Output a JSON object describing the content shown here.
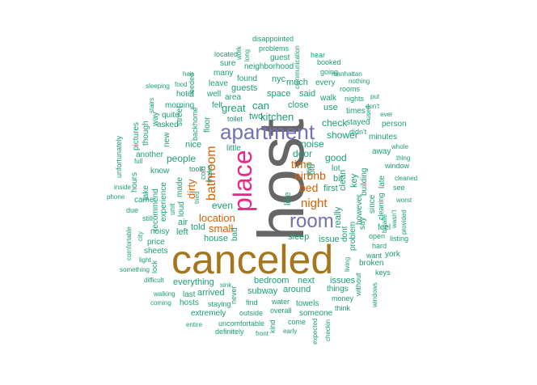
{
  "colors": {
    "teal": "#1b9e77",
    "purple": "#7570b3",
    "orange": "#d95f02",
    "pink": "#e7298a",
    "olive": "#a6761d",
    "gray": "#666666"
  },
  "words": [
    {
      "t": "host",
      "c": "gray"
    },
    {
      "t": "canceled",
      "c": "olive"
    },
    {
      "t": "apartment",
      "c": "purple"
    },
    {
      "t": "place",
      "c": "pink"
    },
    {
      "t": "room",
      "c": "purple"
    },
    {
      "t": "bathroom",
      "c": "orange"
    },
    {
      "t": "night",
      "c": "orange"
    },
    {
      "t": "airbnb",
      "c": "orange"
    },
    {
      "t": "time",
      "c": "orange"
    },
    {
      "t": "bed",
      "c": "orange"
    },
    {
      "t": "location",
      "c": "orange"
    },
    {
      "t": "small",
      "c": "orange"
    },
    {
      "t": "dirty",
      "c": "orange"
    },
    {
      "t": "kitchen",
      "c": "teal"
    },
    {
      "t": "great",
      "c": "teal"
    },
    {
      "t": "can",
      "c": "teal"
    },
    {
      "t": "two",
      "c": "teal"
    },
    {
      "t": "people",
      "c": "teal"
    },
    {
      "t": "even",
      "c": "teal"
    },
    {
      "t": "noise",
      "c": "teal"
    },
    {
      "t": "door",
      "c": "teal"
    },
    {
      "t": "shower",
      "c": "teal"
    },
    {
      "t": "good",
      "c": "teal"
    },
    {
      "t": "check",
      "c": "teal"
    },
    {
      "t": "house",
      "c": "teal"
    },
    {
      "t": "space",
      "c": "teal"
    },
    {
      "t": "much",
      "c": "teal"
    },
    {
      "t": "close",
      "c": "teal"
    },
    {
      "t": "said",
      "c": "teal"
    },
    {
      "t": "use",
      "c": "teal"
    },
    {
      "t": "guests",
      "c": "teal"
    },
    {
      "t": "nice",
      "c": "teal"
    },
    {
      "t": "area",
      "c": "teal"
    },
    {
      "t": "well",
      "c": "teal"
    },
    {
      "t": "leave",
      "c": "teal"
    },
    {
      "t": "found",
      "c": "teal"
    },
    {
      "t": "nyc",
      "c": "teal"
    },
    {
      "t": "many",
      "c": "teal"
    },
    {
      "t": "sure",
      "c": "teal"
    },
    {
      "t": "neighborhood",
      "c": "teal"
    },
    {
      "t": "guest",
      "c": "teal"
    },
    {
      "t": "located",
      "c": "teal"
    },
    {
      "t": "disappointed",
      "c": "teal"
    },
    {
      "t": "problems",
      "c": "teal"
    },
    {
      "t": "work",
      "c": "teal"
    },
    {
      "t": "long",
      "c": "teal"
    },
    {
      "t": "hear",
      "c": "teal"
    },
    {
      "t": "booked",
      "c": "teal"
    },
    {
      "t": "communication",
      "c": "teal"
    },
    {
      "t": "going",
      "c": "teal"
    },
    {
      "t": "manhattan",
      "c": "teal"
    },
    {
      "t": "nothing",
      "c": "teal"
    },
    {
      "t": "every",
      "c": "teal"
    },
    {
      "t": "rooms",
      "c": "teal"
    },
    {
      "t": "walk",
      "c": "teal"
    },
    {
      "t": "nights",
      "c": "teal"
    },
    {
      "t": "put",
      "c": "teal"
    },
    {
      "t": "don't",
      "c": "teal"
    },
    {
      "t": "ever",
      "c": "teal"
    },
    {
      "t": "times",
      "c": "teal"
    },
    {
      "t": "used",
      "c": "teal"
    },
    {
      "t": "person",
      "c": "teal"
    },
    {
      "t": "stayed",
      "c": "teal"
    },
    {
      "t": "didn't",
      "c": "teal"
    },
    {
      "t": "minutes",
      "c": "teal"
    },
    {
      "t": "away",
      "c": "teal"
    },
    {
      "t": "thing",
      "c": "teal"
    },
    {
      "t": "whole",
      "c": "teal"
    },
    {
      "t": "window",
      "c": "teal"
    },
    {
      "t": "cleaned",
      "c": "teal"
    },
    {
      "t": "see",
      "c": "teal"
    },
    {
      "t": "worst",
      "c": "teal"
    },
    {
      "t": "wasn't",
      "c": "teal"
    },
    {
      "t": "provided",
      "c": "teal"
    },
    {
      "t": "bigalle",
      "c": "teal"
    },
    {
      "t": "listing",
      "c": "teal"
    },
    {
      "t": "feel",
      "c": "teal"
    },
    {
      "t": "hard",
      "c": "teal"
    },
    {
      "t": "want",
      "c": "teal"
    },
    {
      "t": "york",
      "c": "teal"
    },
    {
      "t": "broken",
      "c": "teal"
    },
    {
      "t": "keys",
      "c": "teal"
    },
    {
      "t": "windows",
      "c": "teal"
    },
    {
      "t": "open",
      "c": "teal"
    },
    {
      "t": "late",
      "c": "teal"
    },
    {
      "t": "clean",
      "c": "teal"
    },
    {
      "t": "key",
      "c": "teal"
    },
    {
      "t": "building",
      "c": "teal"
    },
    {
      "t": "however",
      "c": "teal"
    },
    {
      "t": "since",
      "c": "teal"
    },
    {
      "t": "cleaning",
      "c": "teal"
    },
    {
      "t": "first",
      "c": "teal"
    },
    {
      "t": "bit",
      "c": "teal"
    },
    {
      "t": "lot",
      "c": "teal"
    },
    {
      "t": "really",
      "c": "teal"
    },
    {
      "t": "like",
      "c": "teal"
    },
    {
      "t": "old",
      "c": "teal"
    },
    {
      "t": "went",
      "c": "teal"
    },
    {
      "t": "bed",
      "c": "teal"
    },
    {
      "t": "issue",
      "c": "teal"
    },
    {
      "t": "sleep",
      "c": "teal"
    },
    {
      "t": "dont",
      "c": "teal"
    },
    {
      "t": "problem",
      "c": "teal"
    },
    {
      "t": "say",
      "c": "teal"
    },
    {
      "t": "living",
      "c": "teal"
    },
    {
      "t": "without",
      "c": "teal"
    },
    {
      "t": "issues",
      "c": "teal"
    },
    {
      "t": "next",
      "c": "teal"
    },
    {
      "t": "around",
      "c": "teal"
    },
    {
      "t": "things",
      "c": "teal"
    },
    {
      "t": "money",
      "c": "teal"
    },
    {
      "t": "think",
      "c": "teal"
    },
    {
      "t": "someone",
      "c": "teal"
    },
    {
      "t": "towels",
      "c": "teal"
    },
    {
      "t": "overall",
      "c": "teal"
    },
    {
      "t": "come",
      "c": "teal"
    },
    {
      "t": "early",
      "c": "teal"
    },
    {
      "t": "kind",
      "c": "teal"
    },
    {
      "t": "checkin",
      "c": "teal"
    },
    {
      "t": "expected",
      "c": "teal"
    },
    {
      "t": "front",
      "c": "teal"
    },
    {
      "t": "uncomfortable",
      "c": "teal"
    },
    {
      "t": "definitely",
      "c": "teal"
    },
    {
      "t": "outside",
      "c": "teal"
    },
    {
      "t": "water",
      "c": "teal"
    },
    {
      "t": "find",
      "c": "teal"
    },
    {
      "t": "subway",
      "c": "teal"
    },
    {
      "t": "bedroom",
      "c": "teal"
    },
    {
      "t": "never",
      "c": "teal"
    },
    {
      "t": "staying",
      "c": "teal"
    },
    {
      "t": "arrived",
      "c": "teal"
    },
    {
      "t": "last",
      "c": "teal"
    },
    {
      "t": "hosts",
      "c": "teal"
    },
    {
      "t": "extremely",
      "c": "teal"
    },
    {
      "t": "entire",
      "c": "teal"
    },
    {
      "t": "sink",
      "c": "teal"
    },
    {
      "t": "everything",
      "c": "teal"
    },
    {
      "t": "walking",
      "c": "teal"
    },
    {
      "t": "coming",
      "c": "teal"
    },
    {
      "t": "difficult",
      "c": "teal"
    },
    {
      "t": "something",
      "c": "teal"
    },
    {
      "t": "light",
      "c": "teal"
    },
    {
      "t": "lock",
      "c": "teal"
    },
    {
      "t": "sheets",
      "c": "teal"
    },
    {
      "t": "price",
      "c": "teal"
    },
    {
      "t": "noisy",
      "c": "teal"
    },
    {
      "t": "comfortable",
      "c": "teal"
    },
    {
      "t": "city",
      "c": "teal"
    },
    {
      "t": "still",
      "c": "teal"
    },
    {
      "t": "due",
      "c": "teal"
    },
    {
      "t": "phone",
      "c": "teal"
    },
    {
      "t": "inside",
      "c": "teal"
    },
    {
      "t": "came",
      "c": "teal"
    },
    {
      "t": "unfortunately",
      "c": "teal"
    },
    {
      "t": "full",
      "c": "teal"
    },
    {
      "t": "hours",
      "c": "teal"
    },
    {
      "t": "take",
      "c": "teal"
    },
    {
      "t": "recommend",
      "c": "teal"
    },
    {
      "t": "experience",
      "c": "teal"
    },
    {
      "t": "unit",
      "c": "teal"
    },
    {
      "t": "air",
      "c": "teal"
    },
    {
      "t": "left",
      "c": "teal"
    },
    {
      "t": "told",
      "c": "teal"
    },
    {
      "t": "loud",
      "c": "teal"
    },
    {
      "t": "made",
      "c": "teal"
    },
    {
      "t": "know",
      "c": "teal"
    },
    {
      "t": "another",
      "c": "teal"
    },
    {
      "t": "pictures",
      "c": "teal"
    },
    {
      "t": "though",
      "c": "teal"
    },
    {
      "t": "way",
      "c": "teal"
    },
    {
      "t": "asked",
      "c": "teal"
    },
    {
      "t": "quite",
      "c": "teal"
    },
    {
      "t": "morning",
      "c": "teal"
    },
    {
      "t": "hotel",
      "c": "teal"
    },
    {
      "t": "food",
      "c": "teal"
    },
    {
      "t": "sleeping",
      "c": "teal"
    },
    {
      "t": "stairs",
      "c": "teal"
    },
    {
      "t": "hair",
      "c": "teal"
    },
    {
      "t": "needed",
      "c": "teal"
    },
    {
      "t": "felt",
      "c": "teal"
    },
    {
      "t": "street",
      "c": "teal"
    },
    {
      "t": "new",
      "c": "teal"
    },
    {
      "t": "backhome",
      "c": "teal"
    },
    {
      "t": "floor",
      "c": "teal"
    },
    {
      "t": "toilet",
      "c": "teal"
    },
    {
      "t": "little",
      "c": "teal"
    },
    {
      "t": "bad",
      "c": "teal"
    },
    {
      "t": "cold",
      "c": "teal"
    },
    {
      "t": "make",
      "c": "teal"
    },
    {
      "t": "took",
      "c": "teal"
    },
    {
      "t": "tried",
      "c": "teal"
    },
    {
      "t": "small",
      "c": "teal"
    },
    {
      "t": "nice",
      "c": "teal"
    }
  ]
}
